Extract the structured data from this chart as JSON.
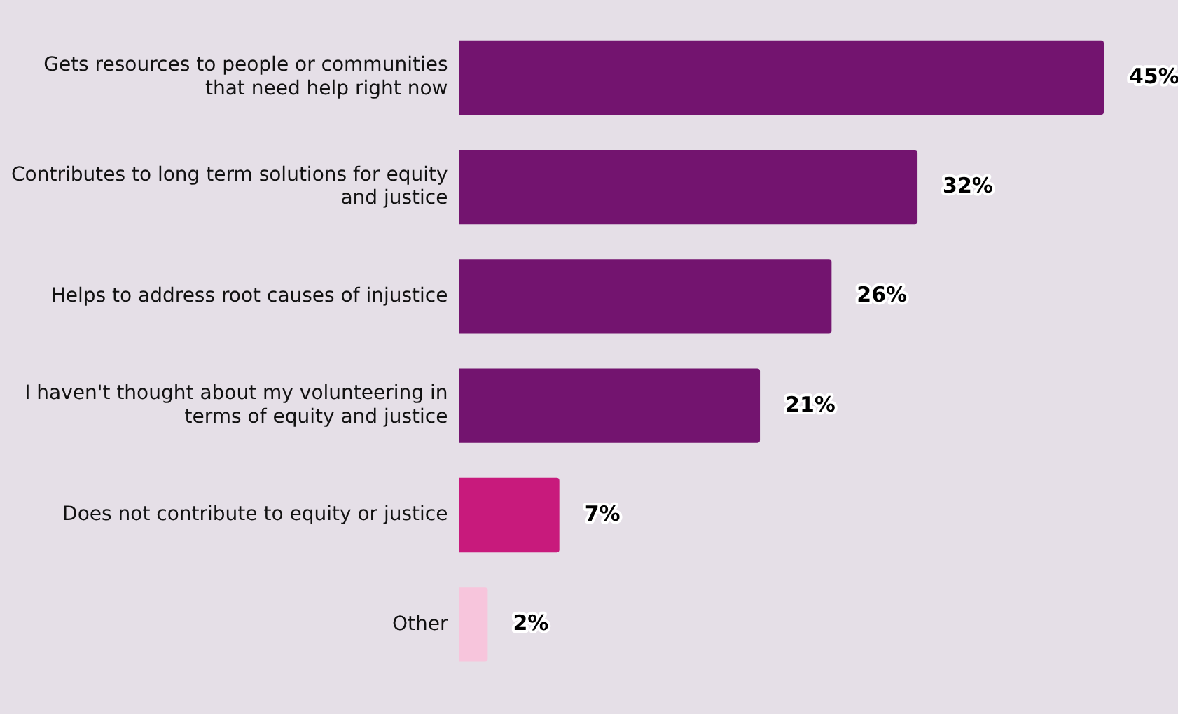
{
  "chart_data": {
    "type": "bar",
    "orientation": "horizontal",
    "categories": [
      "Gets resources to people or communities that need help right now",
      "Contributes to long term solutions for equity and justice",
      "Helps to address root causes of injustice",
      "I haven't thought about my volunteering in terms of equity and justice",
      "Does not contribute to equity or justice",
      "Other"
    ],
    "values": [
      45,
      32,
      26,
      21,
      7,
      2
    ],
    "value_labels": [
      "45%",
      "32%",
      "26%",
      "21%",
      "7%",
      "2%"
    ],
    "colors": [
      "#73146f",
      "#73146f",
      "#73146f",
      "#73146f",
      "#c81a7c",
      "#f7c5dc"
    ],
    "grid": false,
    "legend": false
  }
}
